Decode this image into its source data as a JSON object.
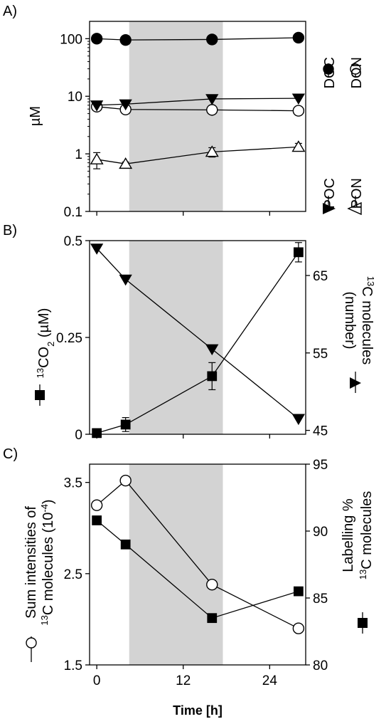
{
  "chart_data": [
    {
      "panel": "A)",
      "type": "line",
      "yscale": "log",
      "ylim": [
        0.1,
        200
      ],
      "yticks": [
        "100",
        "10",
        "1",
        "0.1"
      ],
      "ylabel": "µM",
      "xlim": [
        -1,
        29
      ],
      "shaded_region": [
        4.5,
        17.5
      ],
      "series": [
        {
          "name": "DOC",
          "marker": "filled-circle",
          "x": [
            0,
            4,
            16,
            28
          ],
          "y": [
            100,
            95,
            97,
            104
          ]
        },
        {
          "name": "DON",
          "marker": "open-circle",
          "x": [
            0,
            4,
            16,
            28
          ],
          "y": [
            6.6,
            5.9,
            5.8,
            5.6
          ],
          "err": [
            0.6,
            0.5,
            0.5,
            0.5
          ]
        },
        {
          "name": "POC",
          "marker": "filled-triangle-down",
          "x": [
            0,
            4,
            16,
            28
          ],
          "y": [
            7.0,
            7.3,
            9.0,
            9.2
          ]
        },
        {
          "name": "PON",
          "marker": "open-triangle-up",
          "x": [
            0,
            4,
            16,
            28
          ],
          "y": [
            0.8,
            0.67,
            1.08,
            1.32
          ],
          "err": [
            0.25,
            0.05,
            0.2,
            0.2
          ]
        }
      ],
      "legend": [
        {
          "label": "POC",
          "marker": "filled-triangle-down"
        },
        {
          "label": "DOC",
          "marker": "filled-circle"
        },
        {
          "label": "PON",
          "marker": "open-triangle-up"
        },
        {
          "label": "DON",
          "marker": "open-circle"
        }
      ]
    },
    {
      "panel": "B)",
      "type": "line",
      "ylim_left": [
        0,
        0.5
      ],
      "yticks_left": [
        "0.5",
        "0.25",
        "0"
      ],
      "ylabel_left": "13CO2 (µM)",
      "ylim_right": [
        44.5,
        69.5
      ],
      "yticks_right": [
        "65",
        "55",
        "45"
      ],
      "ylabel_right": "13C molecules (number)",
      "xlim": [
        -1,
        29
      ],
      "shaded_region": [
        4.5,
        17.5
      ],
      "series": [
        {
          "name": "13CO2",
          "axis": "left",
          "marker": "filled-square",
          "x": [
            0,
            4,
            16,
            28
          ],
          "y": [
            0.003,
            0.025,
            0.15,
            0.47
          ],
          "err": [
            0.01,
            0.018,
            0.035,
            0.025
          ]
        },
        {
          "name": "13C molecules",
          "axis": "right",
          "marker": "filled-triangle-down",
          "x": [
            0,
            4,
            16,
            28
          ],
          "y": [
            68.5,
            64.5,
            55.5,
            46.5
          ]
        }
      ]
    },
    {
      "panel": "C)",
      "type": "line",
      "ylim_left": [
        1.5,
        3.7
      ],
      "yticks_left": [
        "3.5",
        "2.5",
        "1.5"
      ],
      "ylabel_left_line1": "Sum intensities of",
      "ylabel_left_line2": "13C molecules (10^-4)",
      "ylim_right": [
        80,
        95
      ],
      "yticks_right": [
        "95",
        "90",
        "85",
        "80"
      ],
      "ylabel_right_line1": "Labelling %",
      "ylabel_right_line2": "13C molecules",
      "xlim": [
        -1,
        29
      ],
      "xticks": [
        "0",
        "12",
        "24"
      ],
      "xlabel": "Time [h]",
      "shaded_region": [
        4.5,
        17.5
      ],
      "series": [
        {
          "name": "Sum intensities",
          "axis": "left",
          "marker": "open-circle",
          "x": [
            0,
            4,
            16,
            28
          ],
          "y": [
            3.25,
            3.52,
            2.38,
            1.9
          ]
        },
        {
          "name": "Labelling %",
          "axis": "right",
          "marker": "filled-square",
          "x": [
            0,
            4,
            16,
            28
          ],
          "y": [
            90.8,
            89.0,
            83.5,
            85.5
          ]
        }
      ]
    }
  ],
  "colors": {
    "shade": "#d3d3d3",
    "ink": "#000000"
  }
}
